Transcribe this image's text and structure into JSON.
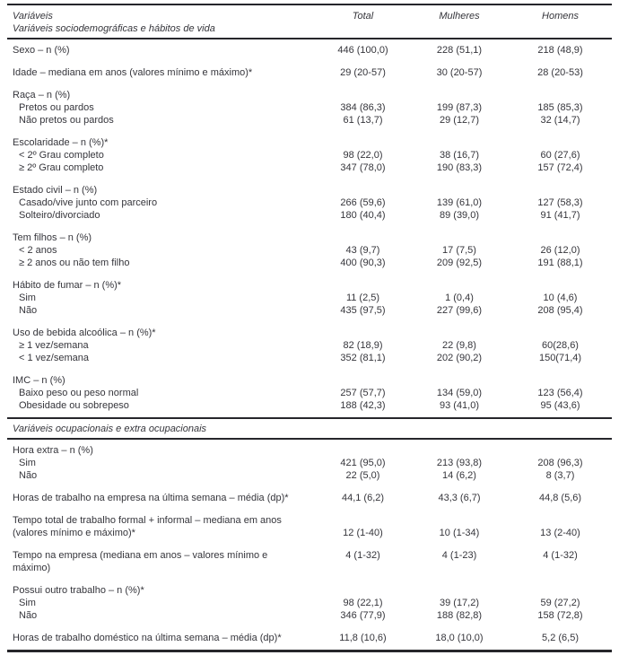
{
  "table": {
    "columns": [
      "Variáveis",
      "Total",
      "Mulheres",
      "Homens"
    ],
    "body": [
      {
        "t": "section",
        "label": "Variáveis sociodemográficas e hábitos de vida"
      },
      {
        "t": "rule"
      },
      {
        "t": "row",
        "label": "Sexo – n (%)",
        "v": [
          "446 (100,0)",
          "228 (51,1)",
          "218 (48,9)"
        ]
      },
      {
        "t": "row",
        "gap": true,
        "label": "Idade – mediana em anos (valores mínimo e máximo)*",
        "v": [
          "29 (20-57)",
          "30 (20-57)",
          "28 (20-53)"
        ]
      },
      {
        "t": "row",
        "gap": true,
        "label": "Raça – n (%)",
        "v": [
          "",
          "",
          ""
        ]
      },
      {
        "t": "row",
        "indent": true,
        "label": "Pretos ou pardos",
        "v": [
          "384 (86,3)",
          "199 (87,3)",
          "185 (85,3)"
        ]
      },
      {
        "t": "row",
        "indent": true,
        "label": "Não pretos ou pardos",
        "v": [
          "61 (13,7)",
          "29 (12,7)",
          "32 (14,7)"
        ]
      },
      {
        "t": "row",
        "gap": true,
        "label": "Escolaridade – n (%)*",
        "v": [
          "",
          "",
          ""
        ]
      },
      {
        "t": "row",
        "indent": true,
        "label": "< 2º Grau completo",
        "v": [
          "98 (22,0)",
          "38 (16,7)",
          "60 (27,6)"
        ]
      },
      {
        "t": "row",
        "indent": true,
        "label": "≥ 2º Grau completo",
        "v": [
          "347 (78,0)",
          "190 (83,3)",
          "157 (72,4)"
        ]
      },
      {
        "t": "row",
        "gap": true,
        "label": "Estado civil – n (%)",
        "v": [
          "",
          "",
          ""
        ]
      },
      {
        "t": "row",
        "indent": true,
        "label": "Casado/vive junto com parceiro",
        "v": [
          "266 (59,6)",
          "139 (61,0)",
          "127 (58,3)"
        ]
      },
      {
        "t": "row",
        "indent": true,
        "label": "Solteiro/divorciado",
        "v": [
          "180 (40,4)",
          "89 (39,0)",
          "91 (41,7)"
        ]
      },
      {
        "t": "row",
        "gap": true,
        "label": "Tem filhos – n (%)",
        "v": [
          "",
          "",
          ""
        ]
      },
      {
        "t": "row",
        "indent": true,
        "label": "< 2 anos",
        "v": [
          "43 (9,7)",
          "17 (7,5)",
          "26 (12,0)"
        ]
      },
      {
        "t": "row",
        "indent": true,
        "label": "≥ 2 anos ou não tem filho",
        "v": [
          "400 (90,3)",
          "209 (92,5)",
          "191 (88,1)"
        ]
      },
      {
        "t": "row",
        "gap": true,
        "label": "Hábito de fumar – n (%)*",
        "v": [
          "",
          "",
          ""
        ]
      },
      {
        "t": "row",
        "indent": true,
        "label": "Sim",
        "v": [
          "11 (2,5)",
          "1 (0,4)",
          "10 (4,6)"
        ]
      },
      {
        "t": "row",
        "indent": true,
        "label": "Não",
        "v": [
          "435 (97,5)",
          "227 (99,6)",
          "208 (95,4)"
        ]
      },
      {
        "t": "row",
        "gap": true,
        "label": "Uso de bebida alcoólica – n (%)*",
        "v": [
          "",
          "",
          ""
        ]
      },
      {
        "t": "row",
        "indent": true,
        "label": "≥ 1 vez/semana",
        "v": [
          "82 (18,9)",
          "22 (9,8)",
          "60(28,6)"
        ]
      },
      {
        "t": "row",
        "indent": true,
        "label": "< 1 vez/semana",
        "v": [
          "352 (81,1)",
          "202 (90,2)",
          "150(71,4)"
        ]
      },
      {
        "t": "row",
        "gap": true,
        "label": "IMC – n (%)",
        "v": [
          "",
          "",
          ""
        ]
      },
      {
        "t": "row",
        "indent": true,
        "label": "Baixo peso ou peso normal",
        "v": [
          "257 (57,7)",
          "134 (59,0)",
          "123 (56,4)"
        ]
      },
      {
        "t": "row",
        "indent": true,
        "label": "Obesidade ou sobrepeso",
        "v": [
          "188 (42,3)",
          "93 (41,0)",
          "95 (43,6)"
        ]
      },
      {
        "t": "rule"
      },
      {
        "t": "section",
        "label": "Variáveis ocupacionais e extra ocupacionais"
      },
      {
        "t": "rule"
      },
      {
        "t": "row",
        "label": "Hora extra – n (%)",
        "v": [
          "",
          "",
          ""
        ]
      },
      {
        "t": "row",
        "indent": true,
        "label": "Sim",
        "v": [
          "421 (95,0)",
          "213 (93,8)",
          "208 (96,3)"
        ]
      },
      {
        "t": "row",
        "indent": true,
        "label": "Não",
        "v": [
          "22 (5,0)",
          "14 (6,2)",
          "8 (3,7)"
        ]
      },
      {
        "t": "row",
        "gap": true,
        "label": "Horas de trabalho na empresa na última semana – média (dp)*",
        "v": [
          "44,1 (6,2)",
          "43,3 (6,7)",
          "44,8 (5,6)"
        ]
      },
      {
        "t": "row",
        "gap": true,
        "valign": "bottom",
        "label": "Tempo total de trabalho formal + informal – mediana em anos",
        "label2": "(valores mínimo e máximo)*",
        "v": [
          "12 (1-40)",
          "10 (1-34)",
          "13 (2-40)"
        ]
      },
      {
        "t": "row",
        "gap": true,
        "label": "Tempo na empresa (mediana em anos – valores mínimo e",
        "label2": "máximo)",
        "v": [
          "4 (1-32)",
          "4 (1-23)",
          "4 (1-32)"
        ]
      },
      {
        "t": "row",
        "gap": true,
        "label": "Possui outro trabalho – n (%)*",
        "v": [
          "",
          "",
          ""
        ]
      },
      {
        "t": "row",
        "indent": true,
        "label": "Sim",
        "v": [
          "98 (22,1)",
          "39 (17,2)",
          "59 (27,2)"
        ]
      },
      {
        "t": "row",
        "indent": true,
        "label": "Não",
        "v": [
          "346 (77,9)",
          "188 (82,8)",
          "158 (72,8)"
        ]
      },
      {
        "t": "row",
        "gap": true,
        "label": "Horas de trabalho doméstico na última semana – média (dp)*",
        "v": [
          "11,8 (10,6)",
          "18,0 (10,0)",
          "5,2 (6,5)"
        ]
      },
      {
        "t": "rule",
        "thick": true
      }
    ]
  }
}
